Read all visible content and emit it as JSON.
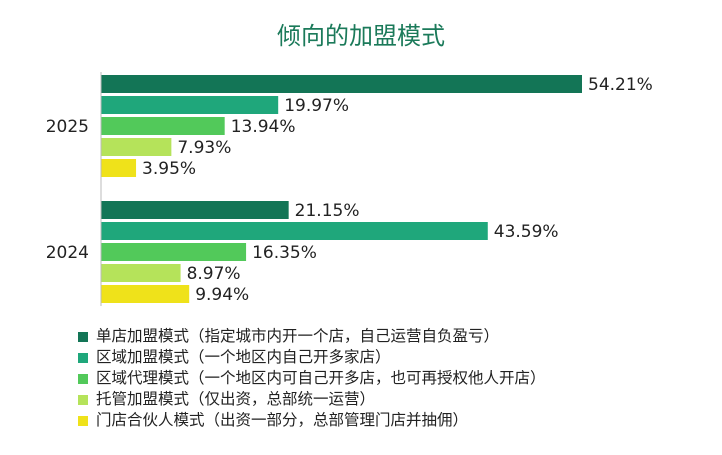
{
  "chart_data": {
    "type": "bar",
    "orientation": "horizontal",
    "title": "倾向的加盟模式",
    "categories": [
      "2025",
      "2024"
    ],
    "series": [
      {
        "name": "单店加盟模式（指定城市内开一个店，自己运营自负盈亏）",
        "color": "#137556",
        "values": [
          54.21,
          21.15
        ],
        "labels": [
          "54.21%",
          "21.15%"
        ]
      },
      {
        "name": "区域加盟模式（一个地区内自己开多家店）",
        "color": "#1fa77b",
        "values": [
          19.97,
          43.59
        ],
        "labels": [
          "19.97%",
          "43.59%"
        ]
      },
      {
        "name": "区域代理模式（一个地区内可自己开多店，也可再授权他人开店）",
        "color": "#52c95a",
        "values": [
          13.94,
          16.35
        ],
        "labels": [
          "13.94%",
          "16.35%"
        ]
      },
      {
        "name": "托管加盟模式（仅出资，总部统一运营）",
        "color": "#b5e35a",
        "values": [
          7.93,
          8.97
        ],
        "labels": [
          "7.93%",
          "8.97%"
        ]
      },
      {
        "name": "门店合伙人模式（出资一部分，总部管理门店并抽佣）",
        "color": "#efe21a",
        "values": [
          3.95,
          9.94
        ],
        "labels": [
          "3.95%",
          "9.94%"
        ]
      }
    ],
    "xlim": [
      0,
      54.21
    ],
    "grid": false,
    "legend_position": "bottom"
  }
}
